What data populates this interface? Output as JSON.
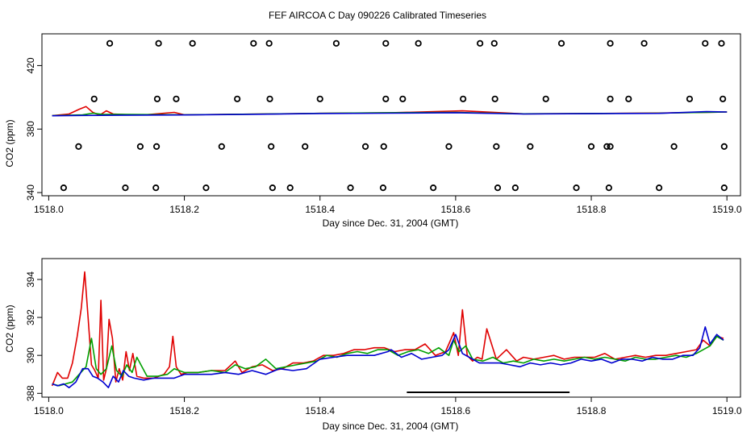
{
  "figure": {
    "title": "FEF AIRCOA C  Day 090226  Calibrated Timeseries"
  },
  "chart_data": [
    {
      "type": "line",
      "title": "",
      "xlabel": "Day since Dec. 31, 2004 (GMT)",
      "ylabel": "CO2 (ppm)",
      "xlim": [
        1517.99,
        1519.02
      ],
      "ylim": [
        338,
        440
      ],
      "xticks": [
        1518.0,
        1518.2,
        1518.4,
        1518.6,
        1518.8,
        1519.0
      ],
      "xtick_labels": [
        "1518.0",
        "1518.2",
        "1518.4",
        "1518.6",
        "1518.8",
        "1519.0"
      ],
      "yticks": [
        340,
        380,
        420
      ],
      "ytick_labels": [
        "340",
        "380",
        "420"
      ],
      "series": [
        {
          "name": "red",
          "color": "#e00000",
          "x": [
            1518.005,
            1518.03,
            1518.045,
            1518.055,
            1518.065,
            1518.075,
            1518.085,
            1518.095,
            1518.12,
            1518.14,
            1518.185,
            1518.2,
            1518.3,
            1518.4,
            1518.5,
            1518.61,
            1518.7,
            1518.8,
            1518.9,
            1519.0
          ],
          "y": [
            388.5,
            389.5,
            392.5,
            394.2,
            390.5,
            388.8,
            391.5,
            389.5,
            389.0,
            388.9,
            390.5,
            389.0,
            389.4,
            389.9,
            390.2,
            391.5,
            389.6,
            389.8,
            390.1,
            390.8
          ]
        },
        {
          "name": "green",
          "color": "#00a000",
          "x": [
            1518.005,
            1518.05,
            1518.065,
            1518.08,
            1518.1,
            1518.2,
            1518.3,
            1518.4,
            1518.5,
            1518.6,
            1518.7,
            1518.8,
            1518.9,
            1519.0
          ],
          "y": [
            388.5,
            389.0,
            390.0,
            389.2,
            389.3,
            389.0,
            389.4,
            389.9,
            390.3,
            390.5,
            389.6,
            389.8,
            390.0,
            390.8
          ]
        },
        {
          "name": "blue",
          "color": "#0000d0",
          "x": [
            1518.005,
            1518.05,
            1518.1,
            1518.2,
            1518.3,
            1518.4,
            1518.5,
            1518.6,
            1518.7,
            1518.8,
            1518.9,
            1518.97,
            1519.0
          ],
          "y": [
            388.4,
            388.6,
            388.7,
            388.9,
            389.3,
            389.8,
            390.0,
            390.3,
            389.5,
            389.7,
            389.9,
            391.0,
            390.8
          ]
        }
      ],
      "markers": {
        "type": "open-circle",
        "points": [
          {
            "x": 1518.09,
            "y": 434
          },
          {
            "x": 1518.162,
            "y": 434
          },
          {
            "x": 1518.212,
            "y": 434
          },
          {
            "x": 1518.302,
            "y": 434
          },
          {
            "x": 1518.325,
            "y": 434
          },
          {
            "x": 1518.424,
            "y": 434
          },
          {
            "x": 1518.497,
            "y": 434
          },
          {
            "x": 1518.545,
            "y": 434
          },
          {
            "x": 1518.636,
            "y": 434
          },
          {
            "x": 1518.657,
            "y": 434
          },
          {
            "x": 1518.756,
            "y": 434
          },
          {
            "x": 1518.828,
            "y": 434
          },
          {
            "x": 1518.878,
            "y": 434
          },
          {
            "x": 1518.968,
            "y": 434
          },
          {
            "x": 1518.992,
            "y": 434
          },
          {
            "x": 1518.067,
            "y": 399
          },
          {
            "x": 1518.16,
            "y": 399
          },
          {
            "x": 1518.188,
            "y": 399
          },
          {
            "x": 1518.278,
            "y": 399
          },
          {
            "x": 1518.326,
            "y": 399
          },
          {
            "x": 1518.4,
            "y": 399
          },
          {
            "x": 1518.497,
            "y": 399
          },
          {
            "x": 1518.522,
            "y": 399
          },
          {
            "x": 1518.611,
            "y": 399
          },
          {
            "x": 1518.658,
            "y": 399
          },
          {
            "x": 1518.733,
            "y": 399
          },
          {
            "x": 1518.828,
            "y": 399
          },
          {
            "x": 1518.855,
            "y": 399
          },
          {
            "x": 1518.945,
            "y": 399
          },
          {
            "x": 1518.994,
            "y": 399
          },
          {
            "x": 1518.044,
            "y": 369
          },
          {
            "x": 1518.135,
            "y": 369
          },
          {
            "x": 1518.159,
            "y": 369
          },
          {
            "x": 1518.255,
            "y": 369
          },
          {
            "x": 1518.328,
            "y": 369
          },
          {
            "x": 1518.378,
            "y": 369
          },
          {
            "x": 1518.467,
            "y": 369
          },
          {
            "x": 1518.494,
            "y": 369
          },
          {
            "x": 1518.59,
            "y": 369
          },
          {
            "x": 1518.66,
            "y": 369
          },
          {
            "x": 1518.71,
            "y": 369
          },
          {
            "x": 1518.8,
            "y": 369
          },
          {
            "x": 1518.823,
            "y": 369
          },
          {
            "x": 1518.828,
            "y": 369
          },
          {
            "x": 1518.922,
            "y": 369
          },
          {
            "x": 1518.996,
            "y": 369
          },
          {
            "x": 1518.022,
            "y": 343
          },
          {
            "x": 1518.113,
            "y": 343
          },
          {
            "x": 1518.158,
            "y": 343
          },
          {
            "x": 1518.232,
            "y": 343
          },
          {
            "x": 1518.33,
            "y": 343
          },
          {
            "x": 1518.356,
            "y": 343
          },
          {
            "x": 1518.445,
            "y": 343
          },
          {
            "x": 1518.493,
            "y": 343
          },
          {
            "x": 1518.567,
            "y": 343
          },
          {
            "x": 1518.662,
            "y": 343
          },
          {
            "x": 1518.688,
            "y": 343
          },
          {
            "x": 1518.778,
            "y": 343
          },
          {
            "x": 1518.826,
            "y": 343
          },
          {
            "x": 1518.9,
            "y": 343
          },
          {
            "x": 1518.996,
            "y": 343
          }
        ]
      }
    },
    {
      "type": "line",
      "title": "",
      "xlabel": "Day since Dec. 31, 2004 (GMT)",
      "ylabel": "CO2 (ppm)",
      "xlim": [
        1517.99,
        1519.02
      ],
      "ylim": [
        387.8,
        395.1
      ],
      "xticks": [
        1518.0,
        1518.2,
        1518.4,
        1518.6,
        1518.8,
        1519.0
      ],
      "xtick_labels": [
        "1518.0",
        "1518.2",
        "1518.4",
        "1518.6",
        "1518.8",
        "1519.0"
      ],
      "yticks": [
        388,
        390,
        392,
        394
      ],
      "ytick_labels": [
        "388",
        "390",
        "392",
        "394"
      ],
      "series": [
        {
          "name": "red",
          "color": "#e00000",
          "x": [
            1518.005,
            1518.013,
            1518.02,
            1518.028,
            1518.035,
            1518.042,
            1518.048,
            1518.053,
            1518.058,
            1518.063,
            1518.068,
            1518.073,
            1518.077,
            1518.081,
            1518.085,
            1518.089,
            1518.094,
            1518.099,
            1518.104,
            1518.109,
            1518.114,
            1518.119,
            1518.124,
            1518.13,
            1518.14,
            1518.155,
            1518.17,
            1518.178,
            1518.183,
            1518.188,
            1518.195,
            1518.205,
            1518.22,
            1518.24,
            1518.26,
            1518.275,
            1518.285,
            1518.3,
            1518.315,
            1518.33,
            1518.345,
            1518.36,
            1518.375,
            1518.39,
            1518.405,
            1518.42,
            1518.435,
            1518.45,
            1518.465,
            1518.48,
            1518.495,
            1518.51,
            1518.525,
            1518.54,
            1518.555,
            1518.57,
            1518.585,
            1518.59,
            1518.597,
            1518.604,
            1518.61,
            1518.617,
            1518.625,
            1518.632,
            1518.639,
            1518.646,
            1518.66,
            1518.675,
            1518.69,
            1518.7,
            1518.715,
            1518.73,
            1518.745,
            1518.76,
            1518.775,
            1518.79,
            1518.805,
            1518.82,
            1518.835,
            1518.85,
            1518.865,
            1518.88,
            1518.895,
            1518.91,
            1518.925,
            1518.94,
            1518.955,
            1518.965,
            1518.975,
            1518.985,
            1518.995
          ],
          "y": [
            388.4,
            389.1,
            388.8,
            388.8,
            389.6,
            391.0,
            392.5,
            394.4,
            392.0,
            389.5,
            389.2,
            388.8,
            392.9,
            388.7,
            389.3,
            391.9,
            390.9,
            388.6,
            389.3,
            388.7,
            390.2,
            389.2,
            390.1,
            388.9,
            388.8,
            388.8,
            389.0,
            389.4,
            391.0,
            389.4,
            389.0,
            389.1,
            389.1,
            389.2,
            389.2,
            389.7,
            389.1,
            389.4,
            389.5,
            389.2,
            389.3,
            389.6,
            389.6,
            389.7,
            390.0,
            390.0,
            390.1,
            390.3,
            390.3,
            390.4,
            390.4,
            390.2,
            390.3,
            390.3,
            390.6,
            390.0,
            390.2,
            390.6,
            391.2,
            390.0,
            392.4,
            390.0,
            389.7,
            389.9,
            389.8,
            391.4,
            389.8,
            390.3,
            389.7,
            389.9,
            389.8,
            389.9,
            390.0,
            389.8,
            389.9,
            389.9,
            389.9,
            390.1,
            389.8,
            389.9,
            390.0,
            389.9,
            390.0,
            390.0,
            390.1,
            390.2,
            390.3,
            390.8,
            390.5,
            391.0,
            390.9
          ]
        },
        {
          "name": "green",
          "color": "#00a000",
          "x": [
            1518.005,
            1518.015,
            1518.025,
            1518.035,
            1518.045,
            1518.055,
            1518.063,
            1518.07,
            1518.077,
            1518.085,
            1518.093,
            1518.1,
            1518.108,
            1518.115,
            1518.123,
            1518.13,
            1518.145,
            1518.16,
            1518.175,
            1518.185,
            1518.2,
            1518.22,
            1518.24,
            1518.26,
            1518.275,
            1518.29,
            1518.305,
            1518.32,
            1518.335,
            1518.35,
            1518.365,
            1518.38,
            1518.395,
            1518.41,
            1518.425,
            1518.44,
            1518.455,
            1518.47,
            1518.485,
            1518.5,
            1518.515,
            1518.53,
            1518.545,
            1518.56,
            1518.575,
            1518.59,
            1518.597,
            1518.605,
            1518.615,
            1518.625,
            1518.64,
            1518.655,
            1518.67,
            1518.685,
            1518.7,
            1518.715,
            1518.73,
            1518.745,
            1518.76,
            1518.775,
            1518.79,
            1518.805,
            1518.82,
            1518.835,
            1518.85,
            1518.865,
            1518.88,
            1518.895,
            1518.91,
            1518.925,
            1518.94,
            1518.955,
            1518.965,
            1518.975,
            1518.985,
            1518.995
          ],
          "y": [
            388.5,
            388.4,
            388.5,
            388.6,
            389.0,
            389.4,
            390.9,
            389.3,
            389.0,
            389.3,
            390.5,
            389.2,
            388.9,
            389.5,
            389.1,
            389.9,
            388.9,
            388.9,
            389.0,
            389.3,
            389.1,
            389.1,
            389.2,
            389.1,
            389.5,
            389.3,
            389.4,
            389.8,
            389.3,
            389.4,
            389.5,
            389.6,
            389.7,
            390.0,
            389.9,
            390.1,
            390.2,
            390.1,
            390.3,
            390.3,
            390.0,
            390.2,
            390.3,
            390.1,
            390.4,
            390.0,
            390.8,
            390.2,
            390.5,
            389.8,
            389.7,
            389.9,
            389.6,
            389.7,
            389.6,
            389.8,
            389.7,
            389.8,
            389.7,
            389.8,
            389.9,
            389.8,
            389.9,
            389.8,
            389.7,
            389.9,
            389.8,
            389.8,
            389.9,
            390.0,
            389.9,
            390.1,
            390.3,
            390.5,
            391.0,
            390.8
          ]
        },
        {
          "name": "blue",
          "color": "#0000d0",
          "x": [
            1518.005,
            1518.013,
            1518.022,
            1518.03,
            1518.04,
            1518.05,
            1518.058,
            1518.065,
            1518.072,
            1518.08,
            1518.088,
            1518.095,
            1518.103,
            1518.11,
            1518.118,
            1518.126,
            1518.14,
            1518.155,
            1518.17,
            1518.185,
            1518.2,
            1518.22,
            1518.24,
            1518.26,
            1518.28,
            1518.3,
            1518.32,
            1518.34,
            1518.36,
            1518.38,
            1518.4,
            1518.42,
            1518.44,
            1518.46,
            1518.48,
            1518.5,
            1518.505,
            1518.52,
            1518.535,
            1518.55,
            1518.565,
            1518.58,
            1518.59,
            1518.6,
            1518.61,
            1518.62,
            1518.635,
            1518.65,
            1518.665,
            1518.68,
            1518.695,
            1518.71,
            1518.725,
            1518.74,
            1518.755,
            1518.77,
            1518.785,
            1518.8,
            1518.815,
            1518.83,
            1518.845,
            1518.86,
            1518.875,
            1518.89,
            1518.905,
            1518.92,
            1518.935,
            1518.95,
            1518.96,
            1518.968,
            1518.975,
            1518.985,
            1518.995
          ],
          "y": [
            388.5,
            388.4,
            388.5,
            388.3,
            388.6,
            389.3,
            389.3,
            388.9,
            388.8,
            388.6,
            388.3,
            388.9,
            388.6,
            389.2,
            388.9,
            388.8,
            388.7,
            388.8,
            388.8,
            388.8,
            389.0,
            389.0,
            389.0,
            389.1,
            389.0,
            389.2,
            389.0,
            389.3,
            389.2,
            389.3,
            389.8,
            389.9,
            390.0,
            390.0,
            390.0,
            390.2,
            390.3,
            389.9,
            390.1,
            389.8,
            389.9,
            390.0,
            390.3,
            391.1,
            390.1,
            389.9,
            389.6,
            389.6,
            389.6,
            389.5,
            389.4,
            389.6,
            389.5,
            389.6,
            389.5,
            389.6,
            389.8,
            389.7,
            389.8,
            389.6,
            389.8,
            389.8,
            389.7,
            389.9,
            389.8,
            389.8,
            390.0,
            390.0,
            390.4,
            391.5,
            390.6,
            391.1,
            390.8
          ]
        }
      ],
      "annotations": [
        {
          "type": "hbar",
          "x_start": 1518.528,
          "x_end": 1518.768,
          "y": 387.8,
          "color": "#000000"
        }
      ]
    }
  ]
}
